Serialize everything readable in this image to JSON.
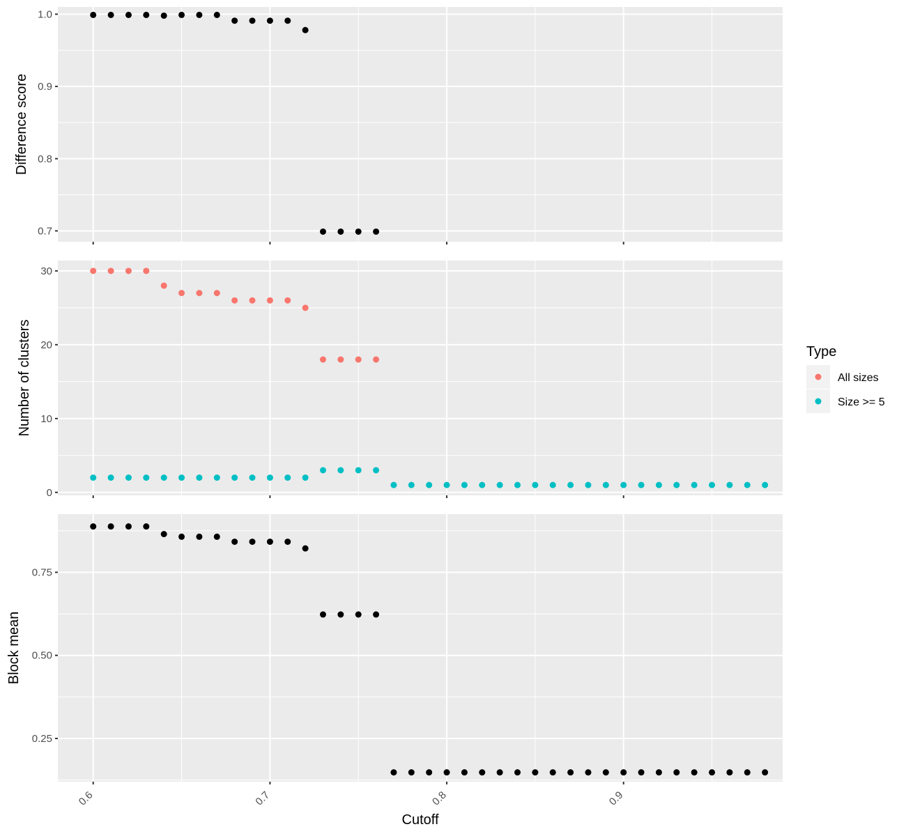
{
  "chart_data": {
    "type": "scatter",
    "xlabel": "Cutoff",
    "xlim": [
      0.58,
      0.99
    ],
    "x_ticks": [
      "0.6",
      "0.7",
      "0.8",
      "0.9"
    ],
    "colors": {
      "black": "#000000",
      "all_sizes": "#F8766D",
      "size_ge_5": "#00BFC4",
      "panel": "#EBEBEB",
      "grid": "#FFFFFF"
    },
    "panels": [
      {
        "ylabel": "Difference score",
        "ylim": [
          0.685,
          1.01
        ],
        "y_ticks": [
          "0.7",
          "0.8",
          "0.9",
          "1.0"
        ],
        "series": [
          {
            "color": "#000000",
            "x": [
              0.6,
              0.61,
              0.62,
              0.63,
              0.64,
              0.65,
              0.66,
              0.67,
              0.68,
              0.69,
              0.7,
              0.71,
              0.72,
              0.73,
              0.74,
              0.75,
              0.76
            ],
            "y": [
              0.999,
              0.999,
              0.999,
              0.999,
              0.998,
              0.999,
              0.999,
              0.999,
              0.991,
              0.991,
              0.991,
              0.991,
              0.978,
              0.699,
              0.699,
              0.699,
              0.699
            ]
          }
        ]
      },
      {
        "ylabel": "Number of clusters",
        "ylim": [
          -0.4,
          31.4
        ],
        "y_ticks": [
          "0",
          "10",
          "20",
          "30"
        ],
        "series": [
          {
            "name": "All sizes",
            "color": "#F8766D",
            "x": [
              0.6,
              0.61,
              0.62,
              0.63,
              0.64,
              0.65,
              0.66,
              0.67,
              0.68,
              0.69,
              0.7,
              0.71,
              0.72,
              0.73,
              0.74,
              0.75,
              0.76
            ],
            "y": [
              30,
              30,
              30,
              30,
              28,
              27,
              27,
              27,
              26,
              26,
              26,
              26,
              25,
              18,
              18,
              18,
              18
            ]
          },
          {
            "name": "Size >= 5",
            "color": "#00BFC4",
            "x": [
              0.6,
              0.61,
              0.62,
              0.63,
              0.64,
              0.65,
              0.66,
              0.67,
              0.68,
              0.69,
              0.7,
              0.71,
              0.72,
              0.73,
              0.74,
              0.75,
              0.76,
              0.77,
              0.78,
              0.79,
              0.8,
              0.81,
              0.82,
              0.83,
              0.84,
              0.85,
              0.86,
              0.87,
              0.88,
              0.89,
              0.9,
              0.91,
              0.92,
              0.93,
              0.94,
              0.95,
              0.96,
              0.97,
              0.98
            ],
            "y": [
              2,
              2,
              2,
              2,
              2,
              2,
              2,
              2,
              2,
              2,
              2,
              2,
              2,
              3,
              3,
              3,
              3,
              1,
              1,
              1,
              1,
              1,
              1,
              1,
              1,
              1,
              1,
              1,
              1,
              1,
              1,
              1,
              1,
              1,
              1,
              1,
              1,
              1,
              1
            ]
          }
        ]
      },
      {
        "ylabel": "Block mean",
        "ylim": [
          0.12,
          0.925
        ],
        "y_ticks": [
          "0.25",
          "0.50",
          "0.75"
        ],
        "series": [
          {
            "color": "#000000",
            "x": [
              0.6,
              0.61,
              0.62,
              0.63,
              0.64,
              0.65,
              0.66,
              0.67,
              0.68,
              0.69,
              0.7,
              0.71,
              0.72,
              0.73,
              0.74,
              0.75,
              0.76,
              0.77,
              0.78,
              0.79,
              0.8,
              0.81,
              0.82,
              0.83,
              0.84,
              0.85,
              0.86,
              0.87,
              0.88,
              0.89,
              0.9,
              0.91,
              0.92,
              0.93,
              0.94,
              0.95,
              0.96,
              0.97,
              0.98
            ],
            "y": [
              0.888,
              0.888,
              0.888,
              0.888,
              0.865,
              0.857,
              0.857,
              0.857,
              0.842,
              0.842,
              0.842,
              0.842,
              0.822,
              0.623,
              0.623,
              0.623,
              0.623,
              0.148,
              0.148,
              0.148,
              0.148,
              0.148,
              0.148,
              0.148,
              0.148,
              0.148,
              0.148,
              0.148,
              0.148,
              0.148,
              0.148,
              0.148,
              0.148,
              0.148,
              0.148,
              0.148,
              0.148,
              0.148,
              0.148
            ]
          }
        ]
      }
    ],
    "legend": {
      "title": "Type",
      "position": "right",
      "items": [
        {
          "label": "All sizes",
          "color": "#F8766D"
        },
        {
          "label": "Size >= 5",
          "color": "#00BFC4"
        }
      ]
    },
    "grid": true
  }
}
